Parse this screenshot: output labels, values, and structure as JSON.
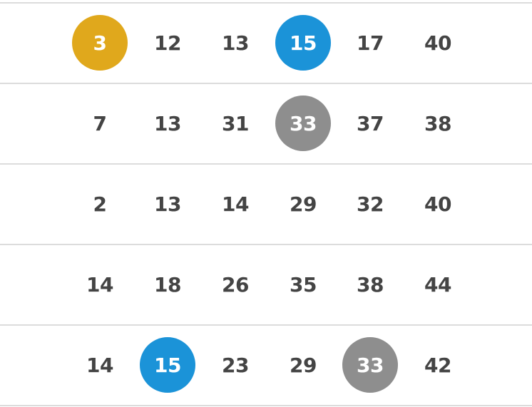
{
  "colors": {
    "gold": "#E0A81C",
    "blue": "#1B93D8",
    "gray": "#8E8E8E"
  },
  "rows": [
    [
      {
        "n": "3",
        "hl": "gold"
      },
      {
        "n": "12"
      },
      {
        "n": "13"
      },
      {
        "n": "15",
        "hl": "blue"
      },
      {
        "n": "17"
      },
      {
        "n": "40"
      }
    ],
    [
      {
        "n": "7"
      },
      {
        "n": "13"
      },
      {
        "n": "31"
      },
      {
        "n": "33",
        "hl": "gray"
      },
      {
        "n": "37"
      },
      {
        "n": "38"
      }
    ],
    [
      {
        "n": "2"
      },
      {
        "n": "13"
      },
      {
        "n": "14"
      },
      {
        "n": "29"
      },
      {
        "n": "32"
      },
      {
        "n": "40"
      }
    ],
    [
      {
        "n": "14"
      },
      {
        "n": "18"
      },
      {
        "n": "26"
      },
      {
        "n": "35"
      },
      {
        "n": "38"
      },
      {
        "n": "44"
      }
    ],
    [
      {
        "n": "14"
      },
      {
        "n": "15",
        "hl": "blue"
      },
      {
        "n": "23"
      },
      {
        "n": "29"
      },
      {
        "n": "33",
        "hl": "gray"
      },
      {
        "n": "42"
      }
    ]
  ]
}
